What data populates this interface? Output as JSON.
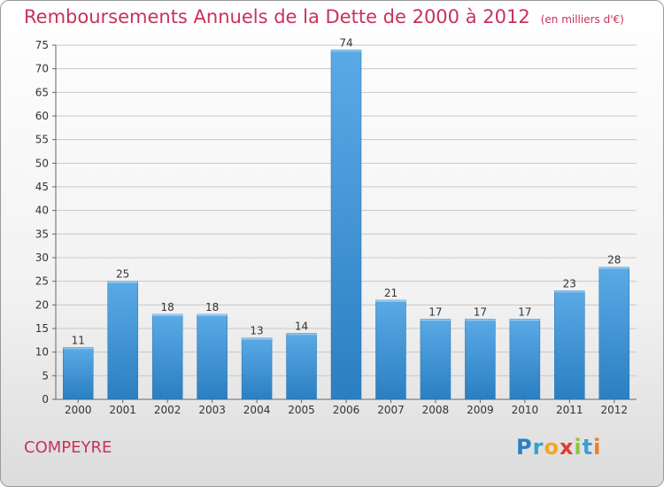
{
  "title": "Remboursements Annuels de la Dette de 2000 à 2012",
  "unit_note": "(en milliers d'€)",
  "commune": "COMPEYRE",
  "logo": "Proxiti",
  "colors": {
    "title": "#c8325a",
    "bar_top": "#5aaae6",
    "bar_bottom": "#2b7fc1",
    "grid": "#c8c8c8"
  },
  "chart_data": {
    "type": "bar",
    "categories": [
      "2000",
      "2001",
      "2002",
      "2003",
      "2004",
      "2005",
      "2006",
      "2007",
      "2008",
      "2009",
      "2010",
      "2011",
      "2012"
    ],
    "values": [
      11,
      25,
      18,
      18,
      13,
      14,
      74,
      21,
      17,
      17,
      17,
      23,
      28
    ],
    "ylim": [
      0,
      75
    ],
    "yticks": [
      0,
      5,
      10,
      15,
      20,
      25,
      30,
      35,
      40,
      45,
      50,
      55,
      60,
      65,
      70,
      75
    ],
    "grid": true,
    "data_labels": true
  }
}
